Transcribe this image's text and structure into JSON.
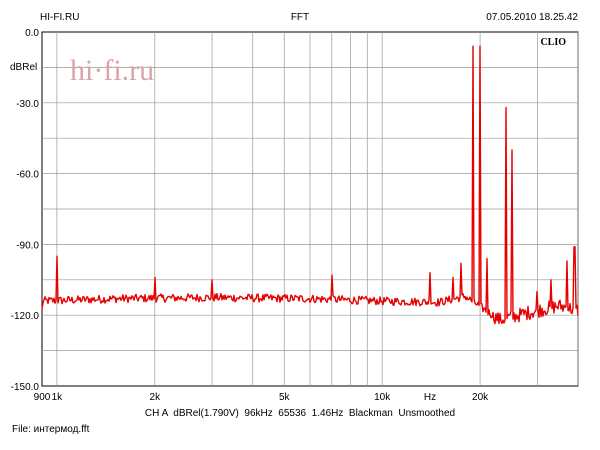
{
  "header": {
    "left": "HI-FI.RU",
    "center": "FFT",
    "right": "07.05.2010 18.25.42"
  },
  "brand": {
    "badge": "CLIO",
    "watermark": "hi·fi.ru"
  },
  "footer": {
    "settings": "CH A  dBRel(1.790V)  96kHz  65536  1.46Hz  Blackman  Unsmoothed",
    "file": "File: интермод.fft"
  },
  "colors": {
    "trace": "#e60000",
    "grid": "#9a9a9a",
    "watermark": "#d9a3a8"
  },
  "chart_data": {
    "type": "line",
    "title": "FFT",
    "xlabel": "Hz",
    "ylabel": "dBRel",
    "x_scale": "log",
    "xlim": [
      900,
      40000
    ],
    "ylim": [
      -150,
      0
    ],
    "x_ticks": [
      {
        "value": 900,
        "label": "900"
      },
      {
        "value": 1000,
        "label": "1k"
      },
      {
        "value": 2000,
        "label": "2k"
      },
      {
        "value": 5000,
        "label": "5k"
      },
      {
        "value": 10000,
        "label": "10k"
      },
      {
        "value": 20000,
        "label": "20k"
      }
    ],
    "y_ticks": [
      {
        "value": 0,
        "label": "0.0"
      },
      {
        "value": -30,
        "label": "-30.0"
      },
      {
        "value": -60,
        "label": "-60.0"
      },
      {
        "value": -90,
        "label": "-90.0"
      },
      {
        "value": -120,
        "label": "-120.0"
      },
      {
        "value": -150,
        "label": "-150.0"
      }
    ],
    "grid": true,
    "noise_floor": [
      [
        900,
        -114
      ],
      [
        1500,
        -113
      ],
      [
        3000,
        -112.5
      ],
      [
        6000,
        -113
      ],
      [
        10000,
        -114
      ],
      [
        15000,
        -114.5
      ],
      [
        18000,
        -112
      ],
      [
        23000,
        -122
      ],
      [
        28000,
        -119
      ],
      [
        35000,
        -116
      ],
      [
        40000,
        -118
      ]
    ],
    "peaks": [
      {
        "x": 1000,
        "y": -95
      },
      {
        "x": 2000,
        "y": -104
      },
      {
        "x": 3000,
        "y": -105
      },
      {
        "x": 7000,
        "y": -103
      },
      {
        "x": 14000,
        "y": -102
      },
      {
        "x": 16500,
        "y": -104
      },
      {
        "x": 19000,
        "y": -6
      },
      {
        "x": 20000,
        "y": -6
      },
      {
        "x": 17500,
        "y": -98
      },
      {
        "x": 21000,
        "y": -96
      },
      {
        "x": 24000,
        "y": -32
      },
      {
        "x": 25000,
        "y": -50
      },
      {
        "x": 30000,
        "y": -110
      },
      {
        "x": 33000,
        "y": -105
      },
      {
        "x": 37000,
        "y": -97
      },
      {
        "x": 39000,
        "y": -91
      }
    ]
  }
}
